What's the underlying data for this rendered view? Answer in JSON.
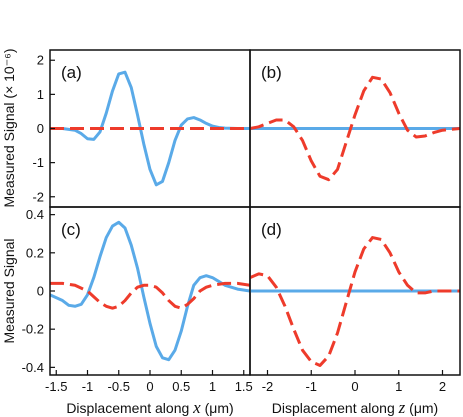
{
  "figure": {
    "ylabel_top": "Measured Signal (× 10⁻⁶)",
    "ylabel_bottom": "Measured Signal",
    "xlabel_left": {
      "prefix": "Displacement along ",
      "var": "x",
      "unit": " (μm)"
    },
    "xlabel_right": {
      "prefix": "Displacement along ",
      "var": "z",
      "unit": " (μm)"
    }
  },
  "colors": {
    "blue": "#5aaae8",
    "red": "#ee3b2b"
  },
  "chart_data": [
    {
      "type": "line",
      "panel_label": "(a)",
      "xlim": [
        -1.6,
        1.6
      ],
      "ylim": [
        -2.3,
        2.3
      ],
      "yticks": [
        2,
        1,
        0,
        -1,
        -2
      ],
      "ytick_labels": [
        "2",
        "1",
        "0",
        "-1",
        "-2"
      ],
      "series": [
        {
          "color": "blue",
          "style": "solid",
          "x": [
            -1.6,
            -1.4,
            -1.2,
            -1.1,
            -1.0,
            -0.9,
            -0.8,
            -0.7,
            -0.6,
            -0.5,
            -0.4,
            -0.3,
            -0.2,
            -0.1,
            0.0,
            0.1,
            0.2,
            0.3,
            0.4,
            0.5,
            0.6,
            0.7,
            0.8,
            0.9,
            1.0,
            1.1,
            1.2,
            1.4,
            1.6
          ],
          "y": [
            0.0,
            0.0,
            -0.05,
            -0.15,
            -0.3,
            -0.32,
            -0.1,
            0.45,
            1.1,
            1.6,
            1.65,
            1.2,
            0.4,
            -0.45,
            -1.2,
            -1.65,
            -1.55,
            -1.0,
            -0.35,
            0.1,
            0.28,
            0.32,
            0.25,
            0.15,
            0.07,
            0.03,
            0.01,
            0.0,
            0.0
          ]
        },
        {
          "color": "red",
          "style": "dashed",
          "x": [
            -1.6,
            1.6
          ],
          "y": [
            0.0,
            0.0
          ]
        }
      ]
    },
    {
      "type": "line",
      "panel_label": "(b)",
      "xlim": [
        -2.4,
        2.4
      ],
      "ylim": [
        -2.3,
        2.3
      ],
      "series": [
        {
          "color": "blue",
          "style": "solid",
          "x": [
            -2.4,
            2.4
          ],
          "y": [
            0.0,
            0.0
          ]
        },
        {
          "color": "red",
          "style": "dashed",
          "x": [
            -2.4,
            -2.2,
            -2.0,
            -1.8,
            -1.6,
            -1.4,
            -1.2,
            -1.0,
            -0.8,
            -0.6,
            -0.4,
            -0.2,
            0.0,
            0.2,
            0.4,
            0.6,
            0.8,
            1.0,
            1.2,
            1.4,
            1.6,
            1.8,
            2.0,
            2.4
          ],
          "y": [
            0.0,
            0.05,
            0.15,
            0.25,
            0.25,
            0.05,
            -0.35,
            -0.95,
            -1.4,
            -1.5,
            -1.2,
            -0.4,
            0.4,
            1.1,
            1.5,
            1.45,
            1.05,
            0.45,
            -0.05,
            -0.25,
            -0.22,
            -0.12,
            -0.05,
            0.0
          ]
        }
      ]
    },
    {
      "type": "line",
      "panel_label": "(c)",
      "xlim": [
        -1.6,
        1.6
      ],
      "ylim": [
        -0.44,
        0.44
      ],
      "yticks": [
        0.4,
        0.2,
        0,
        -0.2,
        -0.4
      ],
      "ytick_labels": [
        "0.4",
        "0.2",
        "0",
        "-0.2",
        "-0.4"
      ],
      "xticks": [
        -1.5,
        -1,
        -0.5,
        0,
        0.5,
        1,
        1.5
      ],
      "xtick_labels": [
        "-1.5",
        "-1",
        "-0.5",
        "0",
        "0.5",
        "1",
        "1.5"
      ],
      "series": [
        {
          "color": "blue",
          "style": "solid",
          "x": [
            -1.6,
            -1.4,
            -1.3,
            -1.2,
            -1.1,
            -1.0,
            -0.9,
            -0.8,
            -0.7,
            -0.6,
            -0.5,
            -0.4,
            -0.3,
            -0.2,
            -0.1,
            0.0,
            0.1,
            0.2,
            0.3,
            0.4,
            0.5,
            0.6,
            0.7,
            0.8,
            0.9,
            1.0,
            1.1,
            1.2,
            1.3,
            1.4,
            1.6
          ],
          "y": [
            -0.02,
            -0.05,
            -0.075,
            -0.08,
            -0.07,
            -0.02,
            0.07,
            0.18,
            0.28,
            0.34,
            0.36,
            0.33,
            0.24,
            0.12,
            -0.03,
            -0.17,
            -0.29,
            -0.35,
            -0.36,
            -0.31,
            -0.21,
            -0.08,
            0.03,
            0.07,
            0.08,
            0.07,
            0.05,
            0.03,
            0.02,
            0.01,
            0.0
          ]
        },
        {
          "color": "red",
          "style": "dashed",
          "x": [
            -1.6,
            -1.4,
            -1.2,
            -1.0,
            -0.9,
            -0.8,
            -0.7,
            -0.6,
            -0.5,
            -0.4,
            -0.3,
            -0.2,
            -0.1,
            0.0,
            0.1,
            0.2,
            0.3,
            0.4,
            0.5,
            0.6,
            0.7,
            0.8,
            0.9,
            1.0,
            1.2,
            1.4,
            1.6
          ],
          "y": [
            0.04,
            0.04,
            0.03,
            0.0,
            -0.03,
            -0.06,
            -0.08,
            -0.09,
            -0.08,
            -0.05,
            -0.01,
            0.02,
            0.03,
            0.03,
            0.02,
            -0.01,
            -0.05,
            -0.08,
            -0.09,
            -0.07,
            -0.04,
            0.0,
            0.02,
            0.03,
            0.04,
            0.04,
            0.03
          ]
        }
      ]
    },
    {
      "type": "line",
      "panel_label": "(d)",
      "xlim": [
        -2.4,
        2.4
      ],
      "ylim": [
        -0.44,
        0.44
      ],
      "xticks": [
        -2,
        -1,
        0,
        1,
        2
      ],
      "xtick_labels": [
        "-2",
        "-1",
        "0",
        "1",
        "2"
      ],
      "series": [
        {
          "color": "blue",
          "style": "solid",
          "x": [
            -2.4,
            2.4
          ],
          "y": [
            0.0,
            0.0
          ]
        },
        {
          "color": "red",
          "style": "dashed",
          "x": [
            -2.4,
            -2.2,
            -2.0,
            -1.8,
            -1.6,
            -1.4,
            -1.2,
            -1.0,
            -0.8,
            -0.6,
            -0.4,
            -0.2,
            0.0,
            0.2,
            0.4,
            0.6,
            0.8,
            1.0,
            1.2,
            1.4,
            1.6,
            1.8,
            2.0,
            2.2,
            2.4
          ],
          "y": [
            0.07,
            0.09,
            0.08,
            0.02,
            -0.08,
            -0.2,
            -0.31,
            -0.37,
            -0.39,
            -0.34,
            -0.22,
            -0.06,
            0.1,
            0.22,
            0.28,
            0.27,
            0.2,
            0.1,
            0.03,
            -0.01,
            -0.01,
            0.0,
            0.0,
            0.0,
            0.0
          ]
        }
      ]
    }
  ]
}
